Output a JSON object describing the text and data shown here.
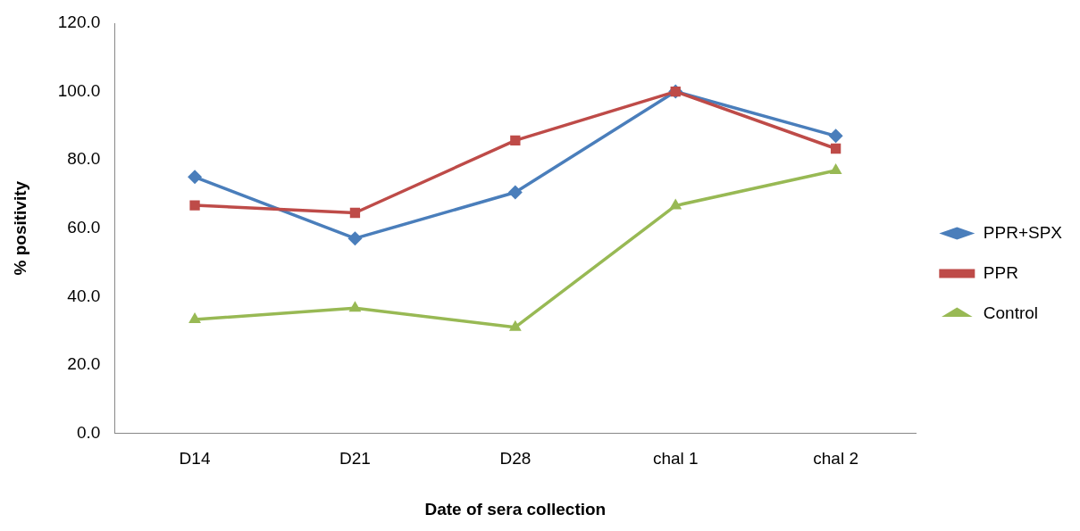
{
  "chart_data": {
    "type": "line",
    "xlabel": "Date of sera collection",
    "ylabel": "% positivity",
    "categories": [
      "D14",
      "D21",
      "D28",
      "chal 1",
      "chal 2"
    ],
    "series": [
      {
        "name": "PPR+SPX",
        "color": "#4a7ebb",
        "marker": "diamond",
        "values": [
          75.0,
          57.0,
          70.5,
          100.0,
          87.0
        ]
      },
      {
        "name": "PPR",
        "color": "#be4b48",
        "marker": "square",
        "values": [
          66.7,
          64.5,
          85.7,
          100.0,
          83.3
        ]
      },
      {
        "name": "Control",
        "color": "#98b954",
        "marker": "triangle",
        "values": [
          33.3,
          36.6,
          31.0,
          66.6,
          76.9
        ]
      }
    ],
    "ylim": [
      0,
      120
    ],
    "yticks": [
      {
        "value": 0,
        "label": "0.0"
      },
      {
        "value": 20,
        "label": "20.0"
      },
      {
        "value": 40,
        "label": "40.0"
      },
      {
        "value": 60,
        "label": "60.0"
      },
      {
        "value": 80,
        "label": "80.0"
      },
      {
        "value": 100,
        "label": "100.0"
      },
      {
        "value": 120,
        "label": "120.0"
      }
    ],
    "grid": false,
    "legend": "right",
    "line_style": "solid"
  }
}
